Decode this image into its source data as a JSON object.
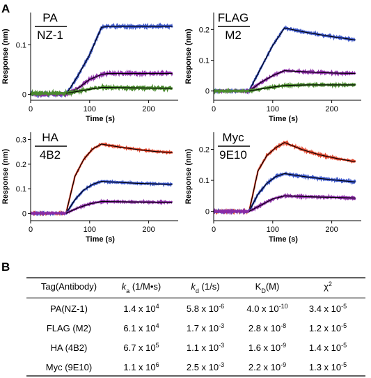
{
  "figure": {
    "panel_a_label": "A",
    "panel_b_label": "B"
  },
  "chart_data": [
    {
      "type": "line",
      "label_top": "PA",
      "label_bottom": "NZ-1",
      "xlabel": "Time (s)",
      "ylabel": "Response (nm)",
      "xlim": [
        0,
        250
      ],
      "ylim": [
        -0.012,
        0.165
      ],
      "xticks": [
        0,
        100,
        200
      ],
      "yticks": [
        0,
        0.1
      ],
      "ytick_labels": [
        "0",
        "0.1"
      ],
      "assoc_start": 60,
      "dissoc_start": 120,
      "x_end": 240,
      "grid": false,
      "series": [
        {
          "color": "#3a55c8",
          "noise": 0.0022,
          "points": [
            [
              0,
              0
            ],
            [
              60,
              0
            ],
            [
              80,
              0.037
            ],
            [
              100,
              0.08
            ],
            [
              120,
              0.135
            ],
            [
              130,
              0.137
            ],
            [
              240,
              0.137
            ]
          ]
        },
        {
          "color": "#8a2ba6",
          "noise": 0.0022,
          "points": [
            [
              0,
              0
            ],
            [
              60,
              0
            ],
            [
              80,
              0.012
            ],
            [
              100,
              0.03
            ],
            [
              120,
              0.04
            ],
            [
              130,
              0.042
            ],
            [
              240,
              0.042
            ]
          ]
        },
        {
          "color": "#4a8a2e",
          "noise": 0.003,
          "points": [
            [
              0,
              0.002
            ],
            [
              60,
              0.002
            ],
            [
              90,
              0.008
            ],
            [
              120,
              0.014
            ],
            [
              240,
              0.012
            ]
          ]
        }
      ]
    },
    {
      "type": "line",
      "label_top": "FLAG",
      "label_bottom": "M2",
      "xlabel": "Time (s)",
      "ylabel": "Response (nm)",
      "xlim": [
        0,
        250
      ],
      "ylim": [
        -0.03,
        0.255
      ],
      "xticks": [
        0,
        100,
        200
      ],
      "yticks": [
        0,
        0.1,
        0.2
      ],
      "ytick_labels": [
        "0",
        "0.1",
        "0.2"
      ],
      "assoc_start": 60,
      "dissoc_start": 120,
      "x_end": 240,
      "grid": false,
      "series": [
        {
          "color": "#3a55c8",
          "noise": 0.0022,
          "points": [
            [
              0,
              0
            ],
            [
              60,
              0
            ],
            [
              80,
              0.075
            ],
            [
              100,
              0.148
            ],
            [
              120,
              0.205
            ],
            [
              150,
              0.193
            ],
            [
              180,
              0.183
            ],
            [
              210,
              0.174
            ],
            [
              240,
              0.166
            ]
          ]
        },
        {
          "color": "#8a2ba6",
          "noise": 0.0022,
          "points": [
            [
              0,
              0
            ],
            [
              60,
              0
            ],
            [
              80,
              0.028
            ],
            [
              100,
              0.05
            ],
            [
              120,
              0.066
            ],
            [
              150,
              0.063
            ],
            [
              180,
              0.06
            ],
            [
              210,
              0.058
            ],
            [
              240,
              0.057
            ]
          ]
        },
        {
          "color": "#4a8a2e",
          "noise": 0.0022,
          "points": [
            [
              0,
              0
            ],
            [
              60,
              0
            ],
            [
              90,
              0.01
            ],
            [
              120,
              0.018
            ],
            [
              160,
              0.02
            ],
            [
              240,
              0.02
            ]
          ]
        }
      ]
    },
    {
      "type": "line",
      "label_top": "HA",
      "label_bottom": "4B2",
      "xlabel": "Time (s)",
      "ylabel": "Response (nm)",
      "xlim": [
        0,
        250
      ],
      "ylim": [
        -0.03,
        0.33
      ],
      "xticks": [
        0,
        100,
        200
      ],
      "yticks": [
        0,
        0.1,
        0.2,
        0.3
      ],
      "ytick_labels": [
        "0",
        "0.1",
        "0.2",
        "0.3"
      ],
      "assoc_start": 60,
      "dissoc_start": 120,
      "x_end": 240,
      "grid": false,
      "series": [
        {
          "color": "#e0452c",
          "noise": 0.0022,
          "points": [
            [
              0,
              0
            ],
            [
              60,
              0
            ],
            [
              75,
              0.15
            ],
            [
              90,
              0.22
            ],
            [
              105,
              0.262
            ],
            [
              120,
              0.282
            ],
            [
              150,
              0.27
            ],
            [
              180,
              0.26
            ],
            [
              210,
              0.252
            ],
            [
              240,
              0.247
            ]
          ]
        },
        {
          "color": "#3a55c8",
          "noise": 0.0022,
          "points": [
            [
              0,
              0
            ],
            [
              60,
              0
            ],
            [
              75,
              0.055
            ],
            [
              90,
              0.095
            ],
            [
              105,
              0.118
            ],
            [
              120,
              0.13
            ],
            [
              150,
              0.126
            ],
            [
              180,
              0.122
            ],
            [
              210,
              0.12
            ],
            [
              240,
              0.118
            ]
          ]
        },
        {
          "color": "#8a2ba6",
          "noise": 0.0022,
          "points": [
            [
              0,
              0
            ],
            [
              60,
              0
            ],
            [
              80,
              0.022
            ],
            [
              100,
              0.038
            ],
            [
              120,
              0.048
            ],
            [
              150,
              0.047
            ],
            [
              180,
              0.046
            ],
            [
              240,
              0.045
            ]
          ]
        }
      ]
    },
    {
      "type": "line",
      "label_top": "Myc",
      "label_bottom": "9E10",
      "xlabel": "Time (s)",
      "ylabel": "Response (nm)",
      "xlim": [
        0,
        250
      ],
      "ylim": [
        -0.03,
        0.255
      ],
      "xticks": [
        0,
        100,
        200
      ],
      "yticks": [
        0,
        0.1,
        0.2
      ],
      "ytick_labels": [
        "0",
        "0.1",
        "0.2"
      ],
      "assoc_start": 60,
      "dissoc_start": 120,
      "x_end": 240,
      "grid": false,
      "series": [
        {
          "color": "#e0452c",
          "noise": 0.0022,
          "points": [
            [
              0,
              0
            ],
            [
              60,
              0
            ],
            [
              75,
              0.13
            ],
            [
              90,
              0.18
            ],
            [
              105,
              0.205
            ],
            [
              120,
              0.222
            ],
            [
              150,
              0.199
            ],
            [
              180,
              0.182
            ],
            [
              210,
              0.17
            ],
            [
              240,
              0.16
            ]
          ]
        },
        {
          "color": "#3a55c8",
          "noise": 0.0022,
          "points": [
            [
              0,
              0
            ],
            [
              60,
              0
            ],
            [
              75,
              0.055
            ],
            [
              90,
              0.09
            ],
            [
              105,
              0.112
            ],
            [
              120,
              0.122
            ],
            [
              150,
              0.113
            ],
            [
              180,
              0.106
            ],
            [
              210,
              0.1
            ],
            [
              240,
              0.095
            ]
          ]
        },
        {
          "color": "#8a2ba6",
          "noise": 0.0022,
          "points": [
            [
              0,
              0
            ],
            [
              60,
              0
            ],
            [
              80,
              0.02
            ],
            [
              100,
              0.04
            ],
            [
              120,
              0.05
            ],
            [
              150,
              0.048
            ],
            [
              180,
              0.046
            ],
            [
              210,
              0.045
            ],
            [
              240,
              0.043
            ]
          ]
        }
      ]
    },
    {
      "type": "table",
      "columns": [
        {
          "main": "Tag(Antibody)",
          "sub": "",
          "unit": "",
          "sup": ""
        },
        {
          "main": "k",
          "sub": "a",
          "unit": " (1/M•s)",
          "sup": "",
          "italic": true
        },
        {
          "main": "k",
          "sub": "d",
          "unit": " (1/s)",
          "sup": "",
          "italic": true
        },
        {
          "main": "K",
          "sub": "D",
          "unit": "(M)",
          "sup": ""
        },
        {
          "main": "χ",
          "sub": "",
          "unit": "",
          "sup": "2"
        }
      ],
      "rows": [
        {
          "tag": "PA(NZ-1)",
          "cells": [
            [
              "1.4 x 10",
              "4"
            ],
            [
              "5.8 x 10",
              "-6"
            ],
            [
              "4.0 x 10",
              "-10"
            ],
            [
              "3.4 x 10",
              "-5"
            ]
          ]
        },
        {
          "tag": "FLAG (M2)",
          "cells": [
            [
              "6.1 x 10",
              "4"
            ],
            [
              "1.7 x 10",
              "-3"
            ],
            [
              "2.8 x 10",
              "-8"
            ],
            [
              "1.2 x 10",
              "-5"
            ]
          ]
        },
        {
          "tag": "HA (4B2)",
          "cells": [
            [
              "6.7 x 10",
              "5"
            ],
            [
              "1.1 x 10",
              "-3"
            ],
            [
              "1.6 x 10",
              "-9"
            ],
            [
              "1.4 x 10",
              "-5"
            ]
          ]
        },
        {
          "tag": "Myc (9E10)",
          "cells": [
            [
              "1.1 x 10",
              "6"
            ],
            [
              "2.5 x 10",
              "-3"
            ],
            [
              "2.2 x 10",
              "-9"
            ],
            [
              "1.3 x 10",
              "-5"
            ]
          ]
        }
      ]
    }
  ]
}
